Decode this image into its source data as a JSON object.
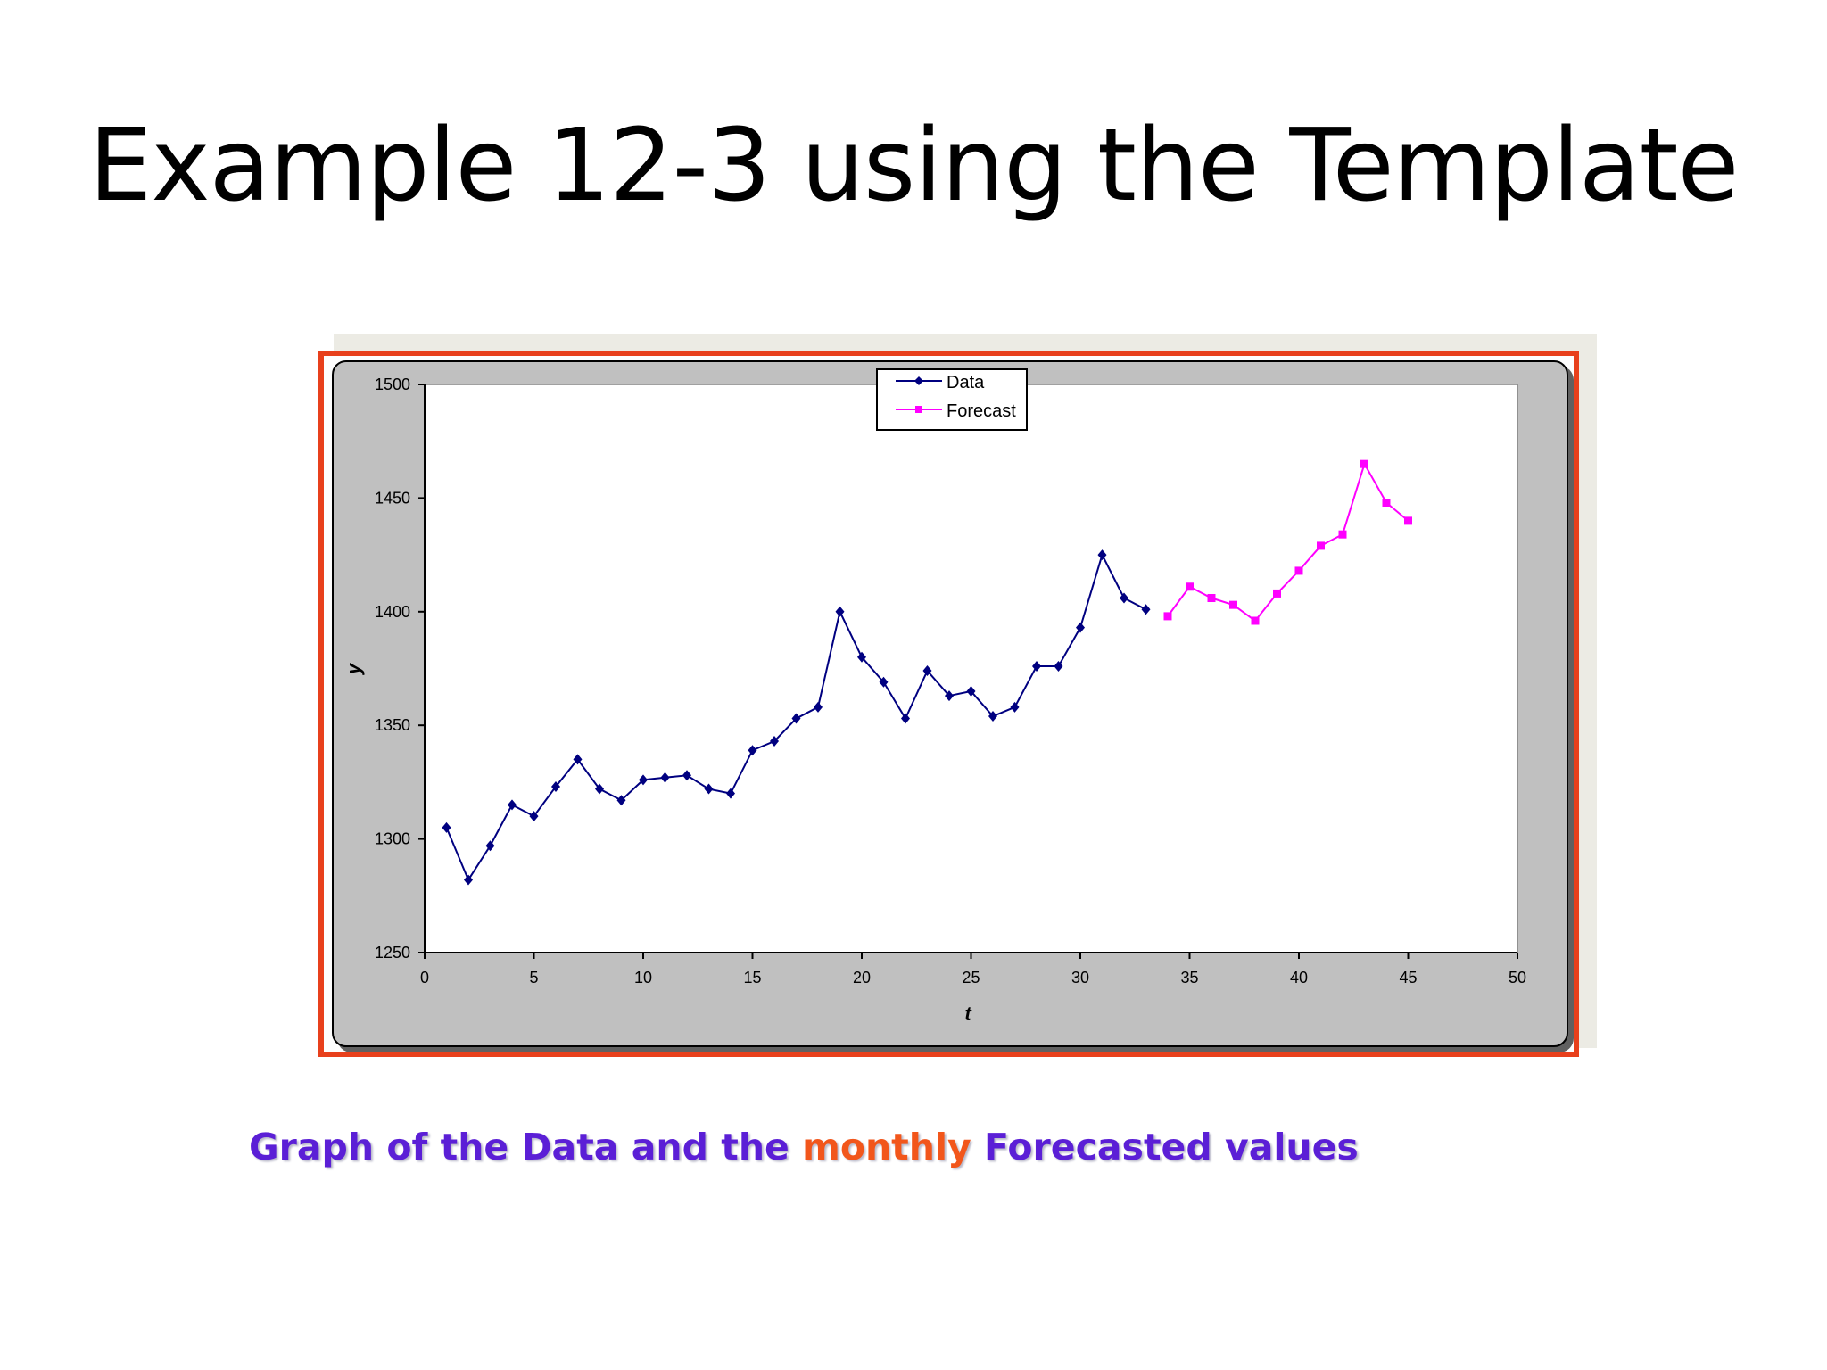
{
  "slide": {
    "title": "Example 12-3 using the Template",
    "caption": {
      "part1": "Graph of the Data and the ",
      "accent": "monthly",
      "part2": " Forecasted values"
    }
  },
  "colors": {
    "frame": "#e8401c",
    "data_series": "#000080",
    "forecast_series": "#ff00ff",
    "caption_text": "#5b1fd6",
    "caption_accent": "#f2561b",
    "chart_area": "#c0c0c0"
  },
  "chart_data": {
    "type": "line",
    "title": "",
    "xlabel": "t",
    "ylabel": "y",
    "xlim": [
      0,
      50
    ],
    "ylim": [
      1250,
      1500
    ],
    "xticks": [
      0,
      5,
      10,
      15,
      20,
      25,
      30,
      35,
      40,
      45,
      50
    ],
    "yticks": [
      1250,
      1300,
      1350,
      1400,
      1450,
      1500
    ],
    "grid": false,
    "legend": "top-center",
    "series": [
      {
        "name": "Data",
        "marker": "diamond",
        "color": "#000080",
        "x": [
          1,
          2,
          3,
          4,
          5,
          6,
          7,
          8,
          9,
          10,
          11,
          12,
          13,
          14,
          15,
          16,
          17,
          18,
          19,
          20,
          21,
          22,
          23,
          24,
          25,
          26,
          27,
          28,
          29,
          30,
          31,
          32,
          33
        ],
        "y": [
          1305,
          1282,
          1297,
          1315,
          1310,
          1323,
          1335,
          1322,
          1317,
          1326,
          1327,
          1328,
          1322,
          1320,
          1339,
          1343,
          1353,
          1358,
          1400,
          1380,
          1369,
          1353,
          1374,
          1363,
          1365,
          1354,
          1358,
          1376,
          1376,
          1393,
          1425,
          1406,
          1401
        ]
      },
      {
        "name": "Forecast",
        "marker": "square",
        "color": "#ff00ff",
        "x": [
          34,
          35,
          36,
          37,
          38,
          39,
          40,
          41,
          42,
          43,
          44,
          45
        ],
        "y": [
          1398,
          1411,
          1406,
          1403,
          1396,
          1408,
          1418,
          1429,
          1434,
          1465,
          1448,
          1440
        ]
      }
    ]
  }
}
